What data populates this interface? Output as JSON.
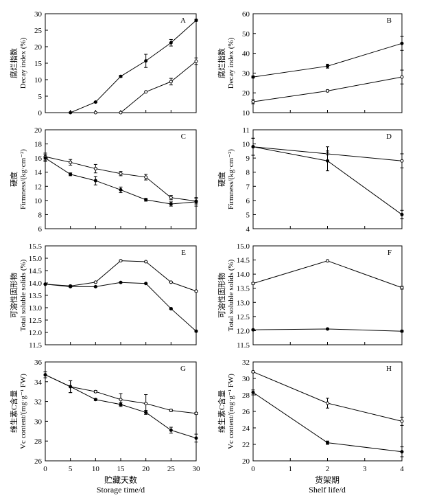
{
  "chart_data": [
    {
      "id": "A",
      "type": "line",
      "letter": "A",
      "ylabel_cn": "腐烂指数",
      "ylabel_en": "Decay index (%)",
      "xlim": [
        0,
        30
      ],
      "ylim": [
        0,
        30
      ],
      "xticks": [
        0,
        5,
        10,
        15,
        20,
        25,
        30
      ],
      "yticks": [
        0,
        5,
        10,
        15,
        20,
        25,
        30
      ],
      "xticklabels": [
        "",
        "",
        "",
        "",
        "",
        "",
        ""
      ],
      "series": [
        {
          "name": "filled",
          "marker": "filled",
          "x": [
            5,
            10,
            15,
            20,
            25,
            30
          ],
          "y": [
            0,
            3.2,
            11,
            15.7,
            21.2,
            28
          ],
          "err": [
            0,
            0.2,
            0.3,
            2.0,
            1.0,
            0.3
          ]
        },
        {
          "name": "open",
          "marker": "open",
          "x": [
            10,
            15,
            20,
            25,
            30
          ],
          "y": [
            0,
            0,
            6.3,
            9.4,
            15.6
          ],
          "err": [
            0,
            0,
            0,
            1.0,
            1.0
          ]
        }
      ]
    },
    {
      "id": "B",
      "type": "line",
      "letter": "B",
      "ylabel_cn": "腐烂指数",
      "ylabel_en": "Decay index (%)",
      "xlim": [
        0,
        4
      ],
      "ylim": [
        10,
        60
      ],
      "xticks": [
        0,
        1,
        2,
        3,
        4
      ],
      "yticks": [
        10,
        20,
        30,
        40,
        50,
        60
      ],
      "xticklabels": [
        "",
        "",
        "",
        "",
        ""
      ],
      "series": [
        {
          "name": "filled",
          "marker": "filled",
          "x": [
            0,
            2,
            4
          ],
          "y": [
            28,
            33.5,
            45
          ],
          "err": [
            0.5,
            1.0,
            3.5
          ]
        },
        {
          "name": "open",
          "marker": "open",
          "x": [
            0,
            2,
            4
          ],
          "y": [
            15.5,
            21,
            28
          ],
          "err": [
            1.0,
            0.5,
            3.5
          ]
        }
      ]
    },
    {
      "id": "C",
      "type": "line",
      "letter": "C",
      "ylabel_cn": "硬度",
      "ylabel_en": "Firmness/(kg·cm⁻²)",
      "xlim": [
        0,
        30
      ],
      "ylim": [
        6,
        20
      ],
      "xticks": [
        0,
        5,
        10,
        15,
        20,
        25,
        30
      ],
      "yticks": [
        6,
        8,
        10,
        12,
        14,
        16,
        18,
        20
      ],
      "xticklabels": [
        "",
        "",
        "",
        "",
        "",
        "",
        ""
      ],
      "series": [
        {
          "name": "open",
          "marker": "open",
          "x": [
            0,
            5,
            10,
            15,
            20,
            25,
            30
          ],
          "y": [
            16.2,
            15.4,
            14.5,
            13.8,
            13.3,
            10.4,
            9.9
          ],
          "err": [
            0.5,
            0.4,
            0.6,
            0.3,
            0.4,
            0.3,
            0.4
          ]
        },
        {
          "name": "filled",
          "marker": "filled",
          "x": [
            0,
            5,
            10,
            15,
            20,
            25,
            30
          ],
          "y": [
            16,
            13.7,
            12.8,
            11.5,
            10.1,
            9.5,
            9.8
          ],
          "err": [
            0.5,
            0.2,
            0.6,
            0.4,
            0.2,
            0.3,
            0.6
          ]
        }
      ]
    },
    {
      "id": "D",
      "type": "line",
      "letter": "D",
      "ylabel_cn": "硬度",
      "ylabel_en": "Firmness/(kg·cm⁻²)",
      "xlim": [
        0,
        4
      ],
      "ylim": [
        4,
        11
      ],
      "xticks": [
        0,
        1,
        2,
        3,
        4
      ],
      "yticks": [
        4,
        5,
        6,
        7,
        8,
        9,
        10,
        11
      ],
      "xticklabels": [
        "",
        "",
        "",
        "",
        ""
      ],
      "series": [
        {
          "name": "open",
          "marker": "open",
          "x": [
            0,
            2,
            4
          ],
          "y": [
            9.8,
            9.3,
            8.8
          ],
          "err": [
            0.6,
            0.5,
            0.5
          ]
        },
        {
          "name": "filled",
          "marker": "filled",
          "x": [
            0,
            2,
            4
          ],
          "y": [
            9.8,
            8.8,
            5.0
          ],
          "err": [
            0.6,
            0.7,
            0.3
          ]
        }
      ]
    },
    {
      "id": "E",
      "type": "line",
      "letter": "E",
      "ylabel_cn": "可溶性固形物",
      "ylabel_en": "Total soluble solids (%)",
      "xlim": [
        0,
        30
      ],
      "ylim": [
        11.5,
        15.5
      ],
      "xticks": [
        0,
        5,
        10,
        15,
        20,
        25,
        30
      ],
      "yticks": [
        11.5,
        12.0,
        12.5,
        13.0,
        13.5,
        14.0,
        14.5,
        15.0,
        15.5
      ],
      "xticklabels": [
        "",
        "",
        "",
        "",
        "",
        "",
        ""
      ],
      "series": [
        {
          "name": "open",
          "marker": "open",
          "x": [
            0,
            5,
            10,
            15,
            20,
            25,
            30
          ],
          "y": [
            13.95,
            13.88,
            14.03,
            14.9,
            14.86,
            14.03,
            13.67
          ],
          "err": [
            0.02,
            0.02,
            0.02,
            0.02,
            0.02,
            0.02,
            0.03
          ]
        },
        {
          "name": "filled",
          "marker": "filled",
          "x": [
            0,
            5,
            10,
            15,
            20,
            25,
            30
          ],
          "y": [
            13.95,
            13.85,
            13.85,
            14.02,
            13.98,
            12.96,
            12.05
          ],
          "err": [
            0.02,
            0.02,
            0.02,
            0.02,
            0.02,
            0.03,
            0.03
          ]
        }
      ]
    },
    {
      "id": "F",
      "type": "line",
      "letter": "F",
      "ylabel_cn": "可溶性固形物",
      "ylabel_en": "Total soluble solids (%)",
      "xlim": [
        0,
        4
      ],
      "ylim": [
        11.5,
        15.0
      ],
      "xticks": [
        0,
        1,
        2,
        3,
        4
      ],
      "yticks": [
        11.5,
        12.0,
        12.5,
        13.0,
        13.5,
        14.0,
        14.5,
        15.0
      ],
      "xticklabels": [
        "",
        "",
        "",
        "",
        ""
      ],
      "series": [
        {
          "name": "open",
          "marker": "open",
          "x": [
            0,
            2,
            4
          ],
          "y": [
            13.67,
            14.47,
            13.52
          ],
          "err": [
            0.03,
            0.02,
            0.05
          ]
        },
        {
          "name": "filled",
          "marker": "filled",
          "x": [
            0,
            2,
            4
          ],
          "y": [
            12.03,
            12.06,
            11.98
          ],
          "err": [
            0.02,
            0.02,
            0.03
          ]
        }
      ]
    },
    {
      "id": "G",
      "type": "line",
      "letter": "G",
      "ylabel_cn": "维生素C含量",
      "ylabel_en": "Vc content/(mg·g⁻¹ FW)",
      "xlim": [
        0,
        30
      ],
      "ylim": [
        26,
        36
      ],
      "xticks": [
        0,
        5,
        10,
        15,
        20,
        25,
        30
      ],
      "yticks": [
        26,
        28,
        30,
        32,
        34,
        36
      ],
      "xticklabels": [
        "0",
        "5",
        "10",
        "15",
        "20",
        "25",
        "30"
      ],
      "xlabel_cn": "贮藏天数",
      "xlabel_en": "Storage time/d",
      "series": [
        {
          "name": "open",
          "marker": "open",
          "x": [
            0,
            5,
            10,
            15,
            20,
            25,
            30
          ],
          "y": [
            34.7,
            33.5,
            33,
            32.2,
            31.8,
            31.1,
            30.8
          ],
          "err": [
            0.3,
            0.6,
            0.1,
            0.6,
            0.9,
            0.1,
            0.1
          ]
        },
        {
          "name": "filled",
          "marker": "filled",
          "x": [
            0,
            5,
            10,
            15,
            20,
            25,
            30
          ],
          "y": [
            34.7,
            33.5,
            32.2,
            31.7,
            30.9,
            29.1,
            28.3
          ],
          "err": [
            0.3,
            0.6,
            0.1,
            0.2,
            0.2,
            0.3,
            0.4
          ]
        }
      ]
    },
    {
      "id": "H",
      "type": "line",
      "letter": "H",
      "ylabel_cn": "维生素C含量",
      "ylabel_en": "Vc content/(mg·g⁻¹ FW)",
      "xlim": [
        0,
        4
      ],
      "ylim": [
        20,
        32
      ],
      "xticks": [
        0,
        1,
        2,
        3,
        4
      ],
      "yticks": [
        20,
        22,
        24,
        26,
        28,
        30,
        32
      ],
      "xticklabels": [
        "0",
        "1",
        "2",
        "3",
        "4"
      ],
      "xlabel_cn": "货架期",
      "xlabel_en": "Shelf life/d",
      "series": [
        {
          "name": "open",
          "marker": "open",
          "x": [
            0,
            2,
            4
          ],
          "y": [
            30.8,
            27,
            24.8
          ],
          "err": [
            0.1,
            0.6,
            0.5
          ]
        },
        {
          "name": "filled",
          "marker": "filled",
          "x": [
            0,
            2,
            4
          ],
          "y": [
            28.3,
            22.2,
            21.1
          ],
          "err": [
            0.3,
            0.2,
            0.6
          ]
        }
      ]
    }
  ]
}
